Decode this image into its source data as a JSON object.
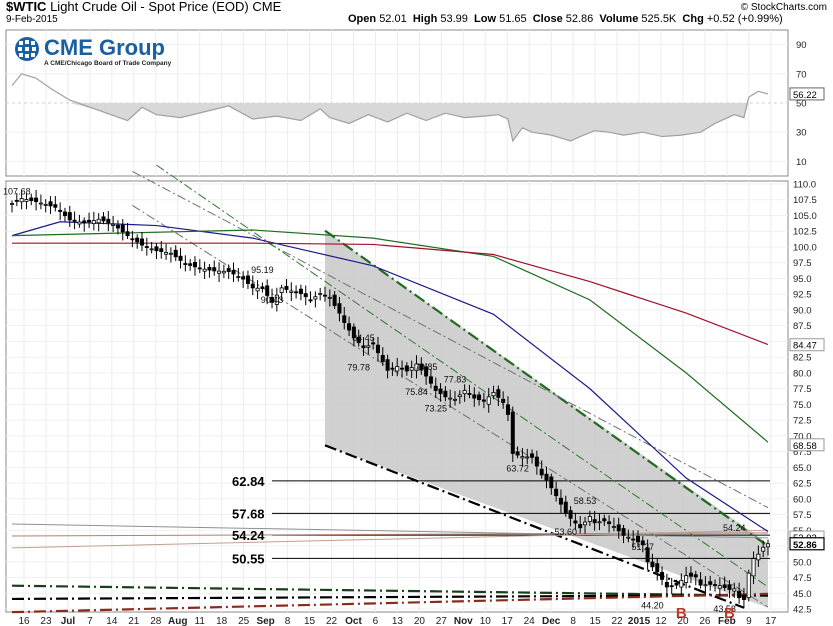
{
  "header": {
    "symbol": "$WTIC",
    "description": "Light Crude Oil - Spot Price (EOD)",
    "exchange": "CME",
    "date": "9-Feb-2015",
    "watermark": "© StockCharts.com",
    "open_label": "Open",
    "open": "52.01",
    "high_label": "High",
    "high": "53.99",
    "low_label": "Low",
    "low": "51.65",
    "close_label": "Close",
    "close": "52.86",
    "volume_label": "Volume",
    "volume": "525.5K",
    "chg_label": "Chg",
    "chg": "+0.52 (+0.99%)"
  },
  "logo": {
    "text": "CME Group",
    "subtitle": "A CME/Chicago Board of Trade Company"
  },
  "colors": {
    "candle": "#000000",
    "ma_short": "#1a1a8c",
    "ma_mid": "#1f6b1f",
    "ma_long": "#a0102a",
    "channel": "#c8c8c8",
    "rsi_line": "#a0a0a0",
    "rsi_fill": "#d8d8d8",
    "buy_marker": "#c0392b"
  },
  "chart_data": {
    "type": "candlestick",
    "x_axis": {
      "tick_labels": [
        "16",
        "23",
        "Jul",
        "7",
        "14",
        "21",
        "28",
        "Aug",
        "11",
        "18",
        "25",
        "Sep",
        "8",
        "15",
        "22",
        "Oct",
        "6",
        "13",
        "20",
        "27",
        "Nov",
        "10",
        "17",
        "24",
        "Dec",
        "8",
        "15",
        "22",
        "2015",
        "12",
        "20",
        "26",
        "Feb",
        "9",
        "17"
      ]
    },
    "price_axis": {
      "min": 42.5,
      "max": 110.0,
      "ticks": [
        110.0,
        107.5,
        105.0,
        102.5,
        100.0,
        97.5,
        95.0,
        92.5,
        90.0,
        87.5,
        85.0,
        82.5,
        80.0,
        77.5,
        75.0,
        72.5,
        70.0,
        67.5,
        65.0,
        62.5,
        60.0,
        57.5,
        55.0,
        52.5,
        50.0,
        47.5,
        45.0,
        42.5
      ]
    },
    "rsi_axis": {
      "min": 0,
      "max": 100,
      "ticks": [
        90,
        70,
        50,
        30,
        10
      ],
      "last": "56.22"
    },
    "close_path": [
      [
        0,
        106.9
      ],
      [
        2,
        107.7
      ],
      [
        5,
        107.2
      ],
      [
        9,
        106.3
      ],
      [
        12,
        104.3
      ],
      [
        15,
        103.8
      ],
      [
        18,
        104.4
      ],
      [
        21,
        103.6
      ],
      [
        24,
        101.8
      ],
      [
        27,
        100.3
      ],
      [
        30,
        99.4
      ],
      [
        33,
        99.0
      ],
      [
        36,
        97.3
      ],
      [
        39,
        96.6
      ],
      [
        42,
        96.2
      ],
      [
        45,
        96.1
      ],
      [
        48,
        94.9
      ],
      [
        50,
        93.5
      ],
      [
        52,
        93.4
      ],
      [
        54,
        91.2
      ],
      [
        56,
        93.5
      ],
      [
        58,
        93.0
      ],
      [
        60,
        92.6
      ],
      [
        62,
        91.6
      ],
      [
        64,
        92.6
      ],
      [
        66,
        92.0
      ],
      [
        67,
        90.7
      ],
      [
        68,
        89.5
      ],
      [
        69,
        88.0
      ],
      [
        71,
        85.6
      ],
      [
        73,
        84.0
      ],
      [
        75,
        84.6
      ],
      [
        77,
        81.8
      ],
      [
        78,
        80.4
      ],
      [
        80,
        81.0
      ],
      [
        82,
        80.3
      ],
      [
        84,
        81.4
      ],
      [
        86,
        79.5
      ],
      [
        88,
        77.2
      ],
      [
        90,
        76.2
      ],
      [
        92,
        75.8
      ],
      [
        94,
        77.2
      ],
      [
        96,
        76.0
      ],
      [
        98,
        75.5
      ],
      [
        100,
        76.9
      ],
      [
        102,
        75.3
      ],
      [
        103,
        73.4
      ],
      [
        104,
        67.2
      ],
      [
        106,
        66.7
      ],
      [
        108,
        66.6
      ],
      [
        110,
        63.8
      ],
      [
        111,
        63.0
      ],
      [
        113,
        60.5
      ],
      [
        115,
        57.8
      ],
      [
        116,
        56.9
      ],
      [
        118,
        55.4
      ],
      [
        120,
        57.2
      ],
      [
        121,
        56.2
      ],
      [
        123,
        56.5
      ],
      [
        125,
        55.6
      ],
      [
        127,
        54.2
      ],
      [
        129,
        53.6
      ],
      [
        131,
        52.7
      ],
      [
        132,
        50.0
      ],
      [
        134,
        48.4
      ],
      [
        136,
        46.0
      ],
      [
        138,
        46.3
      ],
      [
        140,
        47.8
      ],
      [
        142,
        47.6
      ],
      [
        143,
        46.3
      ],
      [
        145,
        46.4
      ],
      [
        147,
        46.2
      ],
      [
        149,
        45.6
      ],
      [
        150,
        45.7
      ],
      [
        151,
        44.3
      ],
      [
        152,
        44.0
      ],
      [
        153,
        48.2
      ],
      [
        154,
        50.5
      ],
      [
        155,
        51.2
      ],
      [
        156,
        52.3
      ],
      [
        157,
        52.86
      ]
    ],
    "moving_averages": [
      {
        "name": "ma_short",
        "values": [
          [
            0,
            101.8
          ],
          [
            10,
            104.0
          ],
          [
            30,
            103.4
          ],
          [
            50,
            101.4
          ],
          [
            75,
            97.0
          ],
          [
            100,
            89.3
          ],
          [
            120,
            77.5
          ],
          [
            140,
            63.3
          ],
          [
            157,
            54.8
          ]
        ]
      },
      {
        "name": "ma_mid",
        "values": [
          [
            0,
            101.8
          ],
          [
            50,
            102.7
          ],
          [
            75,
            101.4
          ],
          [
            100,
            98.5
          ],
          [
            120,
            91.6
          ],
          [
            140,
            80.0
          ],
          [
            157,
            69.0
          ]
        ]
      },
      {
        "name": "ma_long",
        "values": [
          [
            0,
            100.6
          ],
          [
            50,
            100.6
          ],
          [
            75,
            100.4
          ],
          [
            100,
            98.8
          ],
          [
            120,
            94.5
          ],
          [
            140,
            89.5
          ],
          [
            157,
            84.5
          ]
        ]
      }
    ],
    "rsi": [
      [
        0,
        62
      ],
      [
        2,
        70
      ],
      [
        5,
        67
      ],
      [
        8,
        60
      ],
      [
        12,
        52
      ],
      [
        18,
        45
      ],
      [
        24,
        38
      ],
      [
        27,
        47
      ],
      [
        30,
        42
      ],
      [
        35,
        40
      ],
      [
        40,
        44
      ],
      [
        45,
        48
      ],
      [
        50,
        39
      ],
      [
        55,
        41
      ],
      [
        60,
        38
      ],
      [
        64,
        46
      ],
      [
        66,
        40
      ],
      [
        70,
        36
      ],
      [
        74,
        42
      ],
      [
        78,
        37
      ],
      [
        82,
        43
      ],
      [
        86,
        38
      ],
      [
        90,
        43
      ],
      [
        94,
        40
      ],
      [
        98,
        41
      ],
      [
        101,
        42
      ],
      [
        103,
        39
      ],
      [
        104,
        24
      ],
      [
        106,
        33
      ],
      [
        108,
        30
      ],
      [
        112,
        28
      ],
      [
        116,
        24
      ],
      [
        118,
        27
      ],
      [
        121,
        31
      ],
      [
        124,
        30
      ],
      [
        127,
        28
      ],
      [
        131,
        30
      ],
      [
        135,
        27
      ],
      [
        139,
        28
      ],
      [
        143,
        30
      ],
      [
        146,
        36
      ],
      [
        150,
        42
      ],
      [
        152,
        40
      ],
      [
        153,
        54
      ],
      [
        155,
        58
      ],
      [
        157,
        56.22
      ]
    ],
    "price_annotations": [
      {
        "x": 1,
        "y": 107.68,
        "text": "107.68"
      },
      {
        "x": 52,
        "y": 95.19,
        "text": "95.19"
      },
      {
        "x": 54,
        "y": 90.43,
        "text": "90.43"
      },
      {
        "x": 73,
        "y": 84.45,
        "text": "84.45"
      },
      {
        "x": 72,
        "y": 79.78,
        "text": "79.78"
      },
      {
        "x": 86,
        "y": 79.85,
        "text": "79.85"
      },
      {
        "x": 92,
        "y": 77.83,
        "text": "77.83"
      },
      {
        "x": 84,
        "y": 75.84,
        "text": "75.84"
      },
      {
        "x": 88,
        "y": 73.25,
        "text": "73.25"
      },
      {
        "x": 105,
        "y": 63.72,
        "text": "63.72"
      },
      {
        "x": 119,
        "y": 58.53,
        "text": "58.53"
      },
      {
        "x": 115,
        "y": 53.6,
        "text": "53.60"
      },
      {
        "x": 131,
        "y": 51.27,
        "text": "51.27"
      },
      {
        "x": 150,
        "y": 54.24,
        "text": "54.24"
      },
      {
        "x": 133,
        "y": 44.2,
        "text": "44.20"
      },
      {
        "x": 148,
        "y": 43.58,
        "text": "43.58"
      }
    ],
    "horizontal_levels": [
      62.84,
      57.68,
      54.24,
      50.55
    ],
    "level_labels": [
      "62.84",
      "57.68",
      "54.24",
      "50.55"
    ],
    "buy_signals": [
      {
        "x": 139,
        "text": "B"
      },
      {
        "x": 149,
        "text": "B"
      }
    ],
    "right_price_labels": [
      {
        "value": 84.47,
        "text": "84.47"
      },
      {
        "value": 68.58,
        "text": "68.58"
      },
      {
        "value": 53.93,
        "text": "53.93"
      },
      {
        "value": 52.86,
        "text": "52.86"
      }
    ],
    "channel": {
      "upper": [
        [
          65,
          102.6
        ],
        [
          157,
          52.9
        ]
      ],
      "lower": [
        [
          65,
          68.5
        ],
        [
          157,
          42.7
        ]
      ]
    },
    "trendlines": [
      {
        "style": "dashdot-thick",
        "color": "#1f6b1f",
        "points": [
          [
            65,
            102.6
          ],
          [
            157,
            52.5
          ]
        ]
      },
      {
        "style": "dashdot-thick",
        "color": "#000000",
        "points": [
          [
            65,
            68.5
          ],
          [
            152,
            42.7
          ]
        ]
      },
      {
        "style": "dashdot-thin",
        "color": "#707070",
        "points": [
          [
            25,
            112
          ],
          [
            157,
            58.6
          ]
        ]
      },
      {
        "style": "dashdot-thin",
        "color": "#707070",
        "points": [
          [
            25,
            106.6
          ],
          [
            157,
            42.8
          ]
        ]
      },
      {
        "style": "dashdot-thin",
        "color": "#2f7a2f",
        "points": [
          [
            30,
            113
          ],
          [
            157,
            46
          ]
        ]
      },
      {
        "style": "solid-thin",
        "color": "#b08070",
        "points": [
          [
            0,
            54.1
          ],
          [
            157,
            54.6
          ]
        ]
      },
      {
        "style": "solid-thin",
        "color": "#909090",
        "points": [
          [
            0,
            56.0
          ],
          [
            157,
            53.8
          ]
        ]
      },
      {
        "style": "solid-thin",
        "color": "#c0a090",
        "points": [
          [
            0,
            52.2
          ],
          [
            157,
            55.0
          ]
        ]
      },
      {
        "style": "dashdot-thick",
        "color": "#1a3d1a",
        "points": [
          [
            0,
            46.2
          ],
          [
            157,
            44.6
          ]
        ]
      },
      {
        "style": "dashdot-thick",
        "color": "#000000",
        "points": [
          [
            0,
            44.1
          ],
          [
            157,
            44.7
          ]
        ]
      },
      {
        "style": "dashdot-thick",
        "color": "#8b2a1a",
        "points": [
          [
            0,
            42.0
          ],
          [
            157,
            44.9
          ]
        ]
      }
    ]
  }
}
